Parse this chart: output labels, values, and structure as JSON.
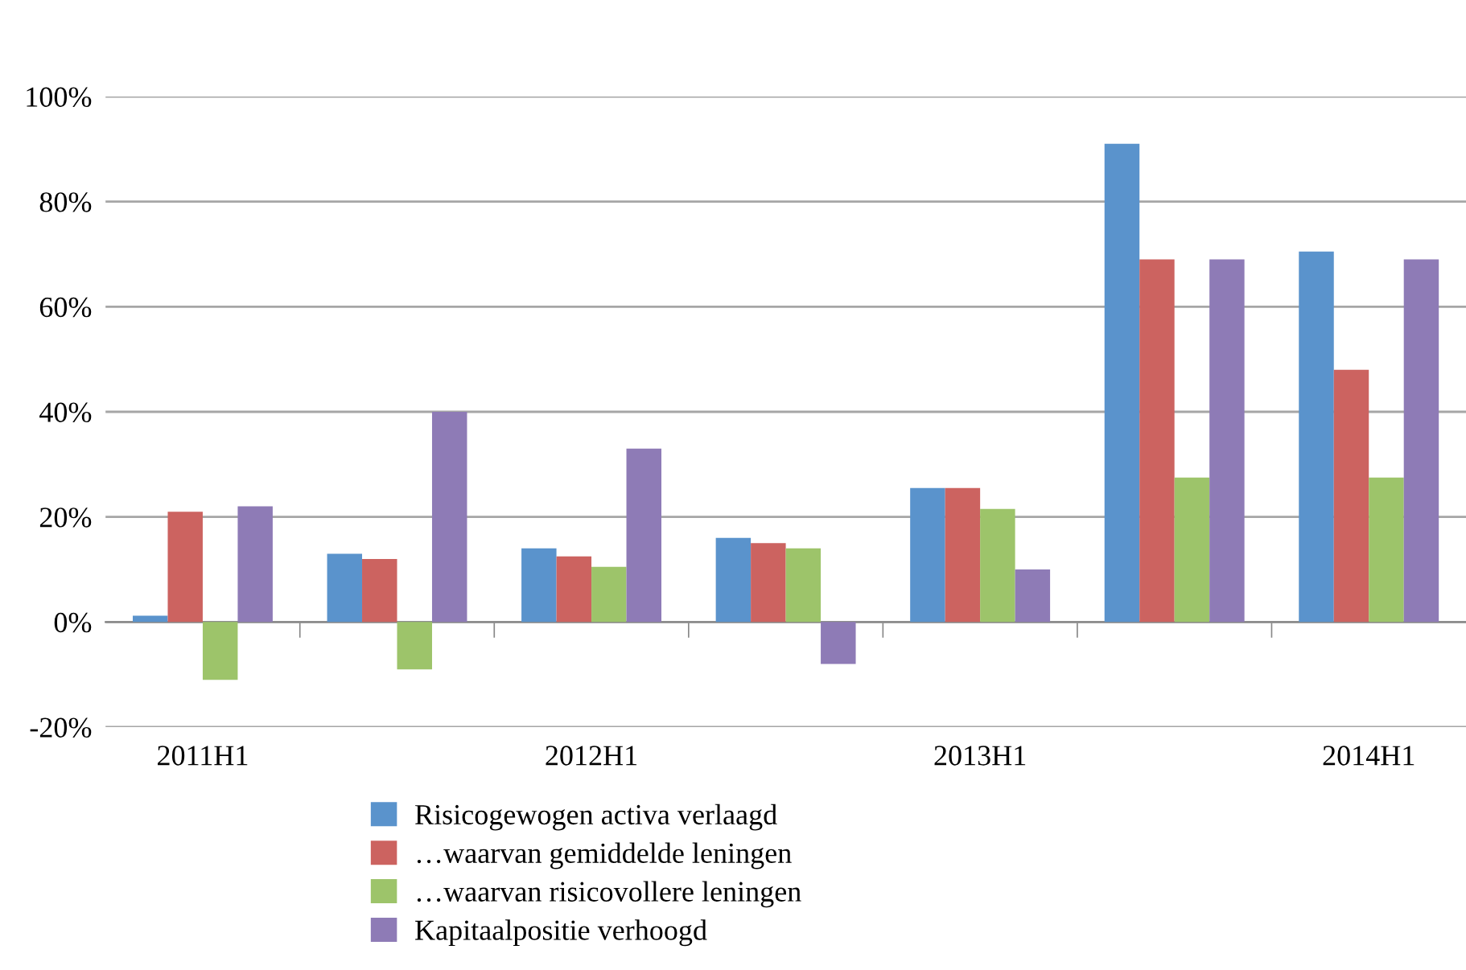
{
  "chart_data": {
    "type": "bar",
    "categories": [
      "2011H1",
      null,
      "2012H1",
      null,
      "2013H1",
      null,
      "2014H1"
    ],
    "series": [
      {
        "name": "Risicogewogen activa verlaagd",
        "color": "#5a93cc",
        "values": [
          1.2,
          13,
          14,
          16,
          25.5,
          91,
          70.5
        ]
      },
      {
        "name": "…waarvan gemiddelde leningen",
        "color": "#cc6360",
        "values": [
          21,
          12,
          12.5,
          15,
          25.5,
          69,
          48
        ]
      },
      {
        "name": "…waarvan risicovollere leningen",
        "color": "#9dc46a",
        "values": [
          -11,
          -9,
          10.5,
          14,
          21.5,
          27.5,
          27.5
        ]
      },
      {
        "name": "Kapitaalpositie verhoogd",
        "color": "#8e7bb6",
        "values": [
          22,
          40,
          33,
          -8,
          10,
          69,
          69
        ]
      }
    ],
    "ylim": [
      -20,
      100
    ],
    "yticks": [
      {
        "value": -20,
        "label": "-20%"
      },
      {
        "value": 0,
        "label": "0%"
      },
      {
        "value": 20,
        "label": "20%"
      },
      {
        "value": 40,
        "label": "40%"
      },
      {
        "value": 60,
        "label": "60%"
      },
      {
        "value": 80,
        "label": "80%"
      },
      {
        "value": 100,
        "label": "100%"
      }
    ],
    "grid": "y",
    "legend": "bottom"
  }
}
